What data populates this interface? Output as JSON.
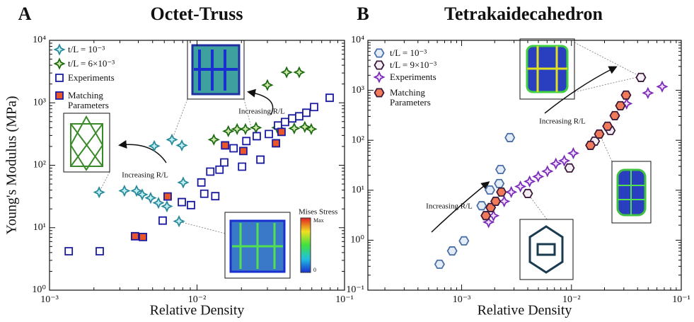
{
  "chart_data": [
    {
      "type": "scatter",
      "panel": "A",
      "title": "Octet-Truss",
      "x_label": "Relative Density",
      "y_label": "Young's Modulus (MPa)",
      "log_x": true,
      "log_y": true,
      "xlim": [
        0.001,
        0.1
      ],
      "ylim": [
        1,
        10000
      ],
      "xticks": [
        {
          "value": 0.001,
          "label": "10⁻³"
        },
        {
          "value": 0.01,
          "label": "10⁻²"
        },
        {
          "value": 0.1,
          "label": "10⁻¹"
        }
      ],
      "yticks": [
        {
          "value": 1,
          "label": "10⁰"
        },
        {
          "value": 10,
          "label": "10¹"
        },
        {
          "value": 100,
          "label": "10²"
        },
        {
          "value": 1000,
          "label": "10³"
        },
        {
          "value": 10000,
          "label": "10⁴"
        }
      ],
      "annotations": [
        "Increasing R/L",
        "Increasing R/L"
      ],
      "colorbar": {
        "title": "Mises Stress",
        "max_label": "Max",
        "min_label": "0"
      },
      "series": [
        {
          "name": "t/L = 10⁻³",
          "color": "#2a8a9a",
          "fill": "#bdeef3",
          "marker": "star4",
          "x": [
            0.00217,
            0.00322,
            0.00389,
            0.00425,
            0.00485,
            0.00548,
            0.00625,
            0.00513,
            0.00676,
            0.00789,
            0.00806,
            0.00755
          ],
          "values": [
            37,
            39,
            39,
            34,
            30,
            25,
            22,
            203,
            257,
            208,
            53,
            12.7
          ]
        },
        {
          "name": "t/L = 6×10⁻³",
          "color": "#1f6b14",
          "fill": "#cfe8a8",
          "marker": "star4",
          "x": [
            0.013,
            0.0163,
            0.0187,
            0.0213,
            0.0251,
            0.03,
            0.035,
            0.0405,
            0.0456,
            0.0493,
            0.0538,
            0.0595
          ],
          "values": [
            257,
            351,
            380,
            380,
            400,
            1923,
            400,
            3080,
            390,
            3080,
            411,
            380
          ]
        },
        {
          "name": "Experiments",
          "color": "#1a1aa0",
          "fill": "#ffffff",
          "marker": "square",
          "x": [
            0.00135,
            0.00219,
            0.00585,
            0.00789,
            0.0091,
            0.0107,
            0.0112,
            0.0123,
            0.0133,
            0.0142,
            0.0153,
            0.0177,
            0.0202,
            0.0216,
            0.0254,
            0.0269,
            0.0307,
            0.0354,
            0.0395,
            0.0442,
            0.0493,
            0.0551,
            0.0622,
            0.0793
          ],
          "values": [
            4.2,
            4.2,
            13,
            25.7,
            23,
            53,
            35,
            79,
            32,
            85,
            111,
            187,
            95,
            244,
            292,
            123,
            316,
            433,
            493,
            562,
            608,
            693,
            855,
            1202
          ]
        },
        {
          "name": "Matching Parameters",
          "color": "#1a1aa0",
          "fill": "#e8562a",
          "marker": "square",
          "x": [
            0.0038,
            0.0043,
            0.00632,
            0.0155,
            0.0206,
            0.0343,
            0.0374
          ],
          "values": [
            7.3,
            7.1,
            31.6,
            208,
            169,
            225,
            342
          ]
        }
      ]
    },
    {
      "type": "scatter",
      "panel": "B",
      "title": "Tetrakaidecahedron",
      "x_label": "Relative Density",
      "log_x": true,
      "log_y": true,
      "xlim": [
        0.00014,
        0.1
      ],
      "ylim": [
        0.1,
        10000
      ],
      "xticks": [
        {
          "value": 0.001,
          "label": "10⁻³"
        },
        {
          "value": 0.01,
          "label": "10⁻²"
        },
        {
          "value": 0.1,
          "label": "10⁻¹"
        }
      ],
      "yticks": [
        {
          "value": 0.1,
          "label": "10⁻¹"
        },
        {
          "value": 1,
          "label": "10⁰"
        },
        {
          "value": 10,
          "label": "10¹"
        },
        {
          "value": 100,
          "label": "10²"
        },
        {
          "value": 1000,
          "label": "10³"
        },
        {
          "value": 10000,
          "label": "10⁴"
        }
      ],
      "annotations": [
        "Increasing R/L",
        "Increasing R/L"
      ],
      "series": [
        {
          "name": "t/L = 10⁻³",
          "color": "#4a6fa8",
          "fill": "#e4ecf8",
          "marker": "hexagon",
          "x": [
            0.00063,
            0.00082,
            0.00105,
            0.00152,
            0.00181,
            0.0022,
            0.00226,
            0.00275
          ],
          "values": [
            0.33,
            0.61,
            0.97,
            4.9,
            10.1,
            13.6,
            26,
            113
          ]
        },
        {
          "name": "t/L = 9×10⁻³",
          "color": "#3a1a3a",
          "fill": "#f4eef4",
          "marker": "hexagon",
          "x": [
            0.004,
            0.0096,
            0.0163,
            0.0226,
            0.0429
          ],
          "values": [
            8.6,
            27.9,
            96,
            157,
            1810
          ]
        },
        {
          "name": "Experiments",
          "color": "#7a2bb8",
          "fill": "#efe0ff",
          "marker": "star4",
          "x": [
            0.00176,
            0.00195,
            0.00244,
            0.00283,
            0.00343,
            0.00416,
            0.00498,
            0.00604,
            0.00721,
            0.0086,
            0.0104,
            0.0318,
            0.0497,
            0.067
          ],
          "values": [
            2.3,
            3.1,
            6.0,
            9.2,
            11.9,
            15,
            18.8,
            24,
            34,
            39,
            55,
            542,
            884,
            1186
          ]
        },
        {
          "name": "Matching Parameters",
          "color": "#3a1a3a",
          "fill": "#f07a5a",
          "marker": "hexagon",
          "x": [
            0.00166,
            0.00184,
            0.00204,
            0.0023,
            0.0149,
            0.0179,
            0.0213,
            0.0248,
            0.0279,
            0.0314
          ],
          "values": [
            3.1,
            4.5,
            6.0,
            9.2,
            79,
            133,
            191,
            311,
            491,
            801
          ]
        }
      ]
    }
  ]
}
